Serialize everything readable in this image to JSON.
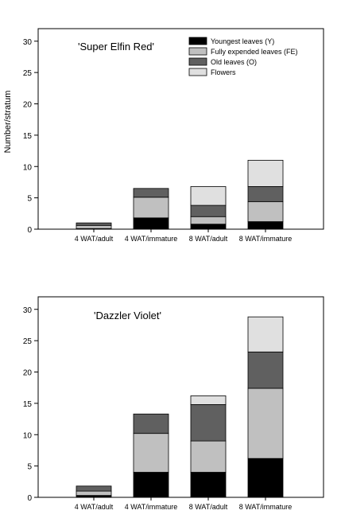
{
  "ylabel": "Number/stratum",
  "legend": {
    "items": [
      {
        "label": "Youngest leaves (Y)",
        "color": "#000000"
      },
      {
        "label": "Fully expended leaves (FE)",
        "color": "#c0c0c0"
      },
      {
        "label": "Old leaves (O)",
        "color": "#606060"
      },
      {
        "label": "Flowers",
        "color": "#e0e0e0"
      }
    ]
  },
  "chart_data": [
    {
      "type": "bar",
      "stacked": true,
      "title": "'Super Elfin Red'",
      "categories": [
        "4 WAT/adult",
        "4 WAT/immature",
        "8 WAT/adult",
        "8 WAT/immature"
      ],
      "series": [
        {
          "name": "Youngest leaves (Y)",
          "color": "#000000",
          "values": [
            0.1,
            1.8,
            0.8,
            1.2
          ]
        },
        {
          "name": "Fully expended leaves (FE)",
          "color": "#c0c0c0",
          "values": [
            0.5,
            3.3,
            1.2,
            3.2
          ]
        },
        {
          "name": "Old leaves (O)",
          "color": "#606060",
          "values": [
            0.4,
            1.4,
            1.8,
            2.4
          ]
        },
        {
          "name": "Flowers",
          "color": "#e0e0e0",
          "values": [
            0.0,
            0.0,
            3.0,
            4.2
          ]
        }
      ],
      "ylim": [
        0,
        32
      ],
      "yticks": [
        0,
        5,
        10,
        15,
        20,
        25,
        30
      ],
      "ylabel": "Number/stratum",
      "legend_position": "top-right"
    },
    {
      "type": "bar",
      "stacked": true,
      "title": "'Dazzler Violet'",
      "categories": [
        "4 WAT/adult",
        "4 WAT/immature",
        "8 WAT/adult",
        "8 WAT/immature"
      ],
      "series": [
        {
          "name": "Youngest leaves (Y)",
          "color": "#000000",
          "values": [
            0.3,
            4.0,
            4.0,
            6.2
          ]
        },
        {
          "name": "Fully expended leaves (FE)",
          "color": "#c0c0c0",
          "values": [
            0.7,
            6.2,
            5.0,
            11.2
          ]
        },
        {
          "name": "Old leaves (O)",
          "color": "#606060",
          "values": [
            0.8,
            3.1,
            5.8,
            5.8
          ]
        },
        {
          "name": "Flowers",
          "color": "#e0e0e0",
          "values": [
            0.0,
            0.0,
            1.4,
            5.6
          ]
        }
      ],
      "ylim": [
        0,
        32
      ],
      "yticks": [
        0,
        5,
        10,
        15,
        20,
        25,
        30
      ],
      "ylabel": "",
      "legend_position": "none"
    }
  ]
}
